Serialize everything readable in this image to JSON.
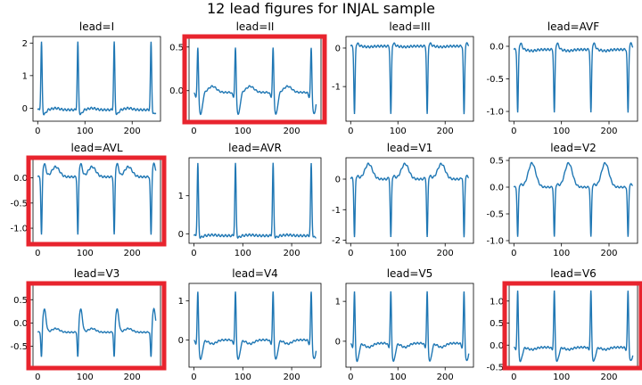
{
  "figure": {
    "title": "12 lead figures for INJAL sample",
    "highlight_color": "#e8242e",
    "line_color": "#1f77b4"
  },
  "chart_data": [
    {
      "type": "line",
      "title": "lead=I",
      "xlim": [
        -10,
        260
      ],
      "ylim": [
        -0.4,
        2.2
      ],
      "yticks": [
        0,
        1,
        2
      ],
      "xticks": [
        0,
        100,
        200
      ],
      "highlighted": false,
      "peaks": [
        8,
        85,
        162,
        240
      ],
      "peak_amp": 2.05,
      "baseline": -0.05,
      "dip": -0.2,
      "pre_dip": 0,
      "t_amp": 0.05
    },
    {
      "type": "line",
      "title": "lead=II",
      "xlim": [
        -10,
        260
      ],
      "ylim": [
        -0.35,
        0.62
      ],
      "yticks": [
        0,
        0.5
      ],
      "ytick_labels": [
        "0.0",
        "0.5"
      ],
      "xticks": [
        0,
        100,
        200
      ],
      "highlighted": true,
      "peaks": [
        8,
        85,
        162,
        240
      ],
      "peak_amp": 0.55,
      "baseline": -0.02,
      "dip": -0.3,
      "pre_dip": -0.05,
      "t_amp": 0.07
    },
    {
      "type": "line",
      "title": "lead=III",
      "xlim": [
        -10,
        260
      ],
      "ylim": [
        -1.9,
        0.3
      ],
      "yticks": [
        -1,
        0
      ],
      "xticks": [
        0,
        100,
        200
      ],
      "highlighted": false,
      "peaks": [
        8,
        85,
        162,
        240
      ],
      "peak_amp": -1.75,
      "baseline": 0.05,
      "dip": 0.12,
      "pre_dip": 0,
      "t_amp": -0.02
    },
    {
      "type": "line",
      "title": "lead=AVF",
      "xlim": [
        -10,
        260
      ],
      "ylim": [
        -1.15,
        0.15
      ],
      "yticks": [
        -1,
        -0.5,
        0
      ],
      "ytick_labels": [
        "-1.0",
        "-0.5",
        "0.0"
      ],
      "xticks": [
        0,
        100,
        200
      ],
      "highlighted": false,
      "peaks": [
        8,
        85,
        162,
        240
      ],
      "peak_amp": -1.05,
      "baseline": -0.05,
      "dip": 0.05,
      "pre_dip": 0,
      "t_amp": -0.02
    },
    {
      "type": "line",
      "title": "lead=AVL",
      "xlim": [
        -10,
        260
      ],
      "ylim": [
        -1.3,
        0.4
      ],
      "yticks": [
        -1,
        -0.5,
        0
      ],
      "ytick_labels": [
        "-1.0",
        "-0.5",
        "0.0"
      ],
      "xticks": [
        0,
        100,
        200
      ],
      "highlighted": true,
      "peaks": [
        8,
        85,
        162,
        240
      ],
      "peak_amp": -1.2,
      "baseline": 0.02,
      "dip": 0.3,
      "pre_dip": 0,
      "t_amp": 0.2
    },
    {
      "type": "line",
      "title": "lead=AVR",
      "xlim": [
        -10,
        260
      ],
      "ylim": [
        -0.25,
        2.0
      ],
      "yticks": [
        0,
        1
      ],
      "xticks": [
        0,
        100,
        200
      ],
      "highlighted": false,
      "peaks": [
        8,
        85,
        162,
        240
      ],
      "peak_amp": 1.85,
      "baseline": -0.05,
      "dip": -0.1,
      "pre_dip": 0,
      "t_amp": 0.02
    },
    {
      "type": "line",
      "title": "lead=V1",
      "xlim": [
        -10,
        260
      ],
      "ylim": [
        -2.1,
        0.7
      ],
      "yticks": [
        -2,
        -1,
        0
      ],
      "xticks": [
        0,
        100,
        200
      ],
      "highlighted": false,
      "peaks": [
        8,
        85,
        162,
        240
      ],
      "peak_amp": -1.95,
      "baseline": 0.0,
      "dip": 0.1,
      "pre_dip": 0.05,
      "t_amp": 0.5
    },
    {
      "type": "line",
      "title": "lead=V2",
      "xlim": [
        -10,
        260
      ],
      "ylim": [
        -1.05,
        0.55
      ],
      "yticks": [
        -1,
        -0.5,
        0,
        0.5
      ],
      "ytick_labels": [
        "-1.0",
        "-0.5",
        "0.0",
        "0.5"
      ],
      "xticks": [
        0,
        100,
        200
      ],
      "highlighted": false,
      "peaks": [
        8,
        85,
        162,
        240
      ],
      "peak_amp": -0.95,
      "baseline": 0.0,
      "dip": 0.05,
      "pre_dip": 0,
      "t_amp": 0.45
    },
    {
      "type": "line",
      "title": "lead=V3",
      "xlim": [
        -10,
        260
      ],
      "ylim": [
        -0.95,
        0.85
      ],
      "yticks": [
        -0.5,
        0,
        0.5
      ],
      "ytick_labels": [
        "-0.5",
        "0.0",
        "0.5"
      ],
      "xticks": [
        0,
        100,
        200
      ],
      "highlighted": true,
      "peaks": [
        8,
        85,
        162,
        240
      ],
      "peak_amp": -0.85,
      "baseline": -0.2,
      "dip": 0.35,
      "pre_dip": 0,
      "t_amp": 0.08
    },
    {
      "type": "line",
      "title": "lead=V4",
      "xlim": [
        -10,
        260
      ],
      "ylim": [
        -0.7,
        1.45
      ],
      "yticks": [
        0,
        1
      ],
      "xticks": [
        0,
        100,
        200
      ],
      "highlighted": false,
      "peaks": [
        8,
        85,
        162,
        240
      ],
      "peak_amp": 1.35,
      "baseline": 0.0,
      "dip": -0.55,
      "pre_dip": -0.1,
      "t_amp": -0.1
    },
    {
      "type": "line",
      "title": "lead=V5",
      "xlim": [
        -10,
        260
      ],
      "ylim": [
        -0.65,
        1.45
      ],
      "yticks": [
        0,
        1
      ],
      "xticks": [
        0,
        100,
        200
      ],
      "highlighted": false,
      "peaks": [
        8,
        85,
        162,
        240
      ],
      "peak_amp": 1.35,
      "baseline": -0.05,
      "dip": -0.55,
      "pre_dip": -0.1,
      "t_amp": -0.1
    },
    {
      "type": "line",
      "title": "lead=V6",
      "xlim": [
        -10,
        260
      ],
      "ylim": [
        -0.5,
        1.4
      ],
      "yticks": [
        -0.5,
        0,
        0.5,
        1
      ],
      "ytick_labels": [
        "-0.5",
        "0.0",
        "0.5",
        "1.0"
      ],
      "xticks": [
        0,
        100,
        200
      ],
      "highlighted": true,
      "peaks": [
        8,
        85,
        162,
        240
      ],
      "peak_amp": 1.3,
      "baseline": -0.05,
      "dip": -0.4,
      "pre_dip": -0.05,
      "t_amp": -0.05
    }
  ]
}
